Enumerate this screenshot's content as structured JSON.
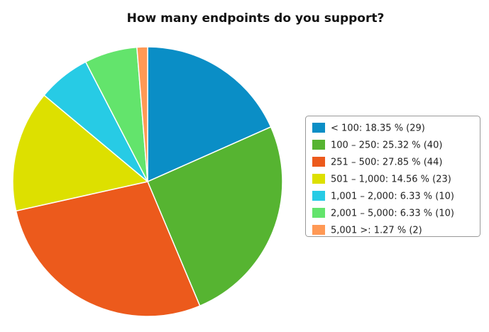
{
  "chart_data": {
    "type": "pie",
    "title": "How many endpoints do you support?",
    "legend": [
      "< 100: 18.35 % (29)",
      "100 – 250: 25.32 % (40)",
      "251 – 500: 27.85 % (44)",
      "501 – 1,000: 14.56 % (23)",
      "1,001 – 2,000: 6.33 % (10)",
      "2,001 – 5,000: 6.33 % (10)",
      "5,001 >: 1.27 % (2)"
    ],
    "values": [
      18.35,
      25.32,
      27.85,
      14.56,
      6.33,
      6.33,
      1.27
    ],
    "colors": [
      "#0a8ec6",
      "#56b431",
      "#ec5a1c",
      "#dde000",
      "#27cbe5",
      "#63e46c",
      "#ff9955"
    ],
    "legend_position": "right"
  }
}
